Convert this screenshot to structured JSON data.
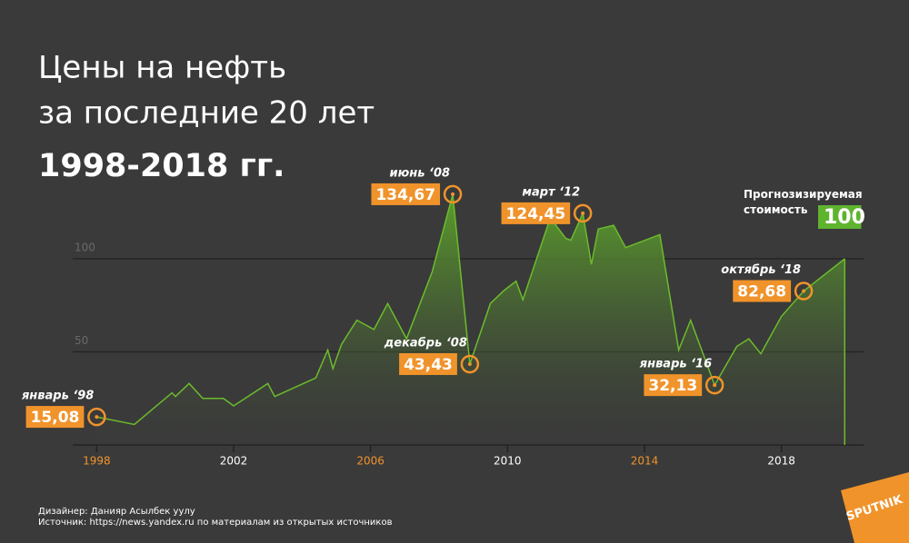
{
  "chart_data": {
    "type": "area",
    "title": [
      "Цены на нефть",
      "за последние 20 лет"
    ],
    "subtitle": "1998-2018 гг.",
    "x": [
      1998.0,
      1999.1,
      2000.2,
      2000.3,
      2000.7,
      2001.1,
      2001.7,
      2002.0,
      2003.0,
      2003.2,
      2004.4,
      2004.75,
      2004.9,
      2005.15,
      2005.6,
      2006.1,
      2006.5,
      2007.05,
      2007.8,
      2008.4,
      2008.9,
      2009.5,
      2009.9,
      2010.25,
      2010.45,
      2011.25,
      2011.7,
      2011.85,
      2012.2,
      2012.45,
      2012.65,
      2013.1,
      2013.45,
      2014.45,
      2015.0,
      2015.35,
      2016.05,
      2016.7,
      2017.05,
      2017.4,
      2018.0,
      2018.65,
      2019.85
    ],
    "series": [
      {
        "color": "#6cbb2c",
        "values": [
          15.08,
          11,
          28,
          26,
          33,
          25,
          25,
          21,
          33,
          26,
          36,
          51,
          41,
          54,
          67,
          62,
          76,
          57,
          93,
          134.67,
          43.43,
          76,
          83,
          88,
          78,
          122,
          111,
          110,
          124.45,
          97,
          116,
          118,
          106,
          113,
          51,
          67,
          32.13,
          53,
          57,
          49,
          69,
          82.68,
          100
        ],
        "value_labels": [
          "15,08",
          null,
          null,
          null,
          null,
          null,
          null,
          null,
          null,
          null,
          null,
          null,
          null,
          null,
          null,
          null,
          null,
          null,
          null,
          "134,67",
          "43,43",
          null,
          null,
          null,
          null,
          null,
          null,
          null,
          "124,45",
          null,
          null,
          null,
          null,
          null,
          null,
          null,
          "32,13",
          null,
          null,
          null,
          null,
          "82,68",
          "100"
        ],
        "point_labels": [
          "январь ‘98",
          null,
          null,
          null,
          null,
          null,
          null,
          null,
          null,
          null,
          null,
          null,
          null,
          null,
          null,
          null,
          null,
          null,
          null,
          "июнь ‘08",
          "декабрь ‘08",
          null,
          null,
          null,
          null,
          null,
          null,
          null,
          "март ‘12",
          null,
          null,
          null,
          null,
          null,
          null,
          null,
          "январь ‘16",
          null,
          null,
          null,
          null,
          "октябрь ‘18",
          "Прогнозизируемая стоимость"
        ]
      }
    ],
    "annotation_color": "#f0932b",
    "forecast_color": "#5fb42e",
    "xlim": [
      1997.3,
      2020.4
    ],
    "xticks": [
      1998,
      2002,
      2006,
      2010,
      2014,
      2018
    ],
    "ylim": [
      0,
      140
    ],
    "yticks": [
      50,
      100
    ],
    "grid": true
  },
  "footer": {
    "designer": "Дизайнер: Данияр Асылбек уулу",
    "source": "Источник: https://news.yandex.ru по материалам из открытых источников",
    "logo": "SPUTNIK"
  }
}
